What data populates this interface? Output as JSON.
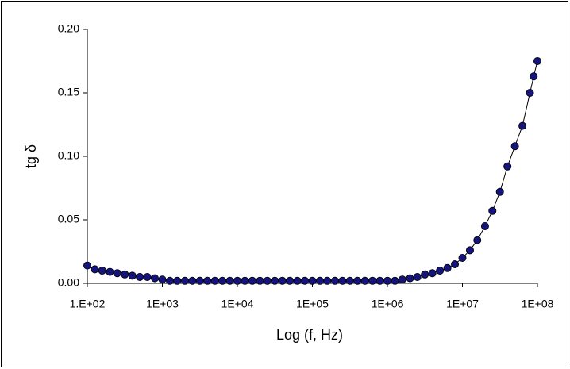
{
  "chart_data": {
    "type": "scatter",
    "x_label": "Log (f, Hz)",
    "y_label": "tg δ",
    "xscale": "log",
    "grid": false,
    "line": true,
    "color": "#14147a",
    "xlim": [
      100,
      100000000
    ],
    "xticks": [
      {
        "value": 100,
        "label": "1.E+02"
      },
      {
        "value": 1000,
        "label": "1E+03"
      },
      {
        "value": 10000,
        "label": "1E+04"
      },
      {
        "value": 100000,
        "label": "1E+05"
      },
      {
        "value": 1000000,
        "label": "1E+06"
      },
      {
        "value": 10000000,
        "label": "1E+07"
      },
      {
        "value": 100000000,
        "label": "1E+08"
      }
    ],
    "ylim": [
      0,
      0.2
    ],
    "yticks": [
      {
        "value": 0,
        "label": "0.00"
      },
      {
        "value": 0.05,
        "label": "0.05"
      },
      {
        "value": 0.1,
        "label": "0.10"
      },
      {
        "value": 0.15,
        "label": "0.15"
      },
      {
        "value": 0.2,
        "label": "0.20"
      }
    ],
    "x": [
      100,
      126,
      158,
      200,
      251,
      316,
      398,
      501,
      631,
      794,
      1000,
      1260,
      1580,
      2000,
      2510,
      3160,
      3980,
      5010,
      6310,
      7940,
      10000,
      12600,
      15800,
      20000,
      25100,
      31600,
      39800,
      50100,
      63100,
      79400,
      100000,
      126000,
      158000,
      200000,
      251000,
      316000,
      398000,
      501000,
      631000,
      794000,
      1000000,
      1260000,
      1580000,
      2000000,
      2510000,
      3160000,
      3980000,
      5010000,
      6310000,
      7940000,
      10000000,
      12600000,
      15800000,
      20000000,
      25100000,
      31600000,
      39800000,
      50100000,
      63100000,
      79400000,
      89100000,
      100000000
    ],
    "values": [
      0.014,
      0.011,
      0.01,
      0.009,
      0.008,
      0.007,
      0.006,
      0.005,
      0.005,
      0.004,
      0.003,
      0.002,
      0.002,
      0.002,
      0.002,
      0.002,
      0.002,
      0.002,
      0.002,
      0.002,
      0.002,
      0.002,
      0.002,
      0.002,
      0.002,
      0.002,
      0.002,
      0.002,
      0.002,
      0.002,
      0.002,
      0.002,
      0.002,
      0.002,
      0.002,
      0.002,
      0.002,
      0.002,
      0.002,
      0.002,
      0.002,
      0.002,
      0.003,
      0.004,
      0.005,
      0.007,
      0.008,
      0.01,
      0.012,
      0.015,
      0.02,
      0.026,
      0.034,
      0.045,
      0.057,
      0.072,
      0.092,
      0.108,
      0.124,
      0.15,
      0.163,
      0.175
    ]
  }
}
